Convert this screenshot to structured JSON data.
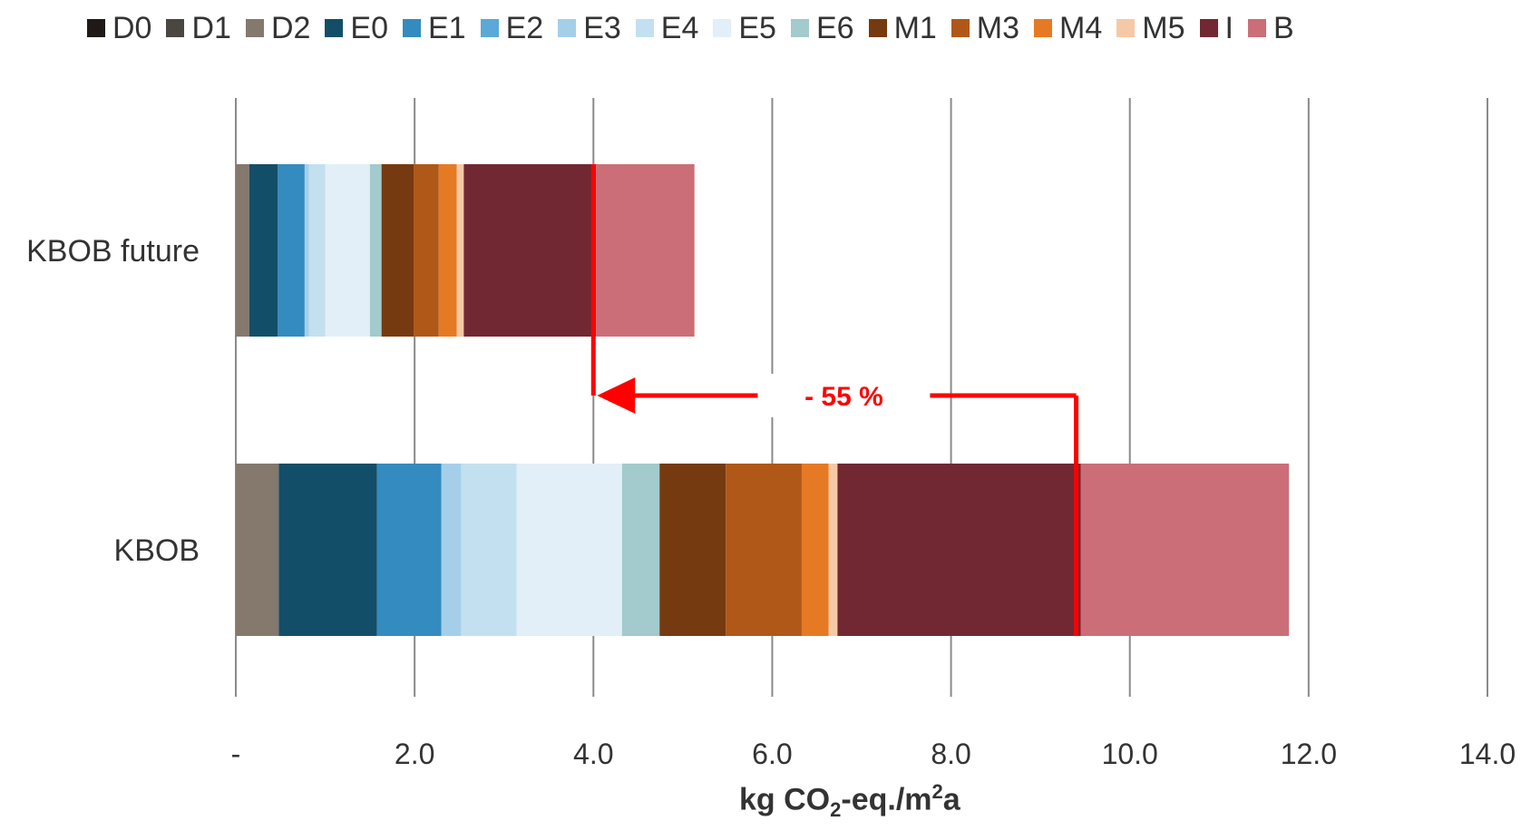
{
  "chart_data": {
    "type": "bar",
    "orientation": "horizontal",
    "stacked": true,
    "categories": [
      "KBOB future",
      "KBOB"
    ],
    "series": [
      {
        "name": "D0",
        "color": "#1f1a17",
        "values": [
          0.0,
          0.0
        ]
      },
      {
        "name": "D1",
        "color": "#4a4642",
        "values": [
          0.0,
          0.0
        ]
      },
      {
        "name": "D2",
        "color": "#85786d",
        "values": [
          0.15,
          0.48
        ]
      },
      {
        "name": "E0",
        "color": "#134e68",
        "values": [
          0.32,
          1.1
        ]
      },
      {
        "name": "E1",
        "color": "#348bbf",
        "values": [
          0.3,
          0.72
        ]
      },
      {
        "name": "E2",
        "color": "#5aa9d6",
        "values": [
          0.0,
          0.0
        ]
      },
      {
        "name": "E3",
        "color": "#a5cfe9",
        "values": [
          0.05,
          0.22
        ]
      },
      {
        "name": "E4",
        "color": "#c3e0f0",
        "values": [
          0.18,
          0.62
        ]
      },
      {
        "name": "E5",
        "color": "#e2eff8",
        "values": [
          0.5,
          1.18
        ]
      },
      {
        "name": "E6",
        "color": "#a3cacc",
        "values": [
          0.13,
          0.42
        ]
      },
      {
        "name": "M1",
        "color": "#763a10",
        "values": [
          0.36,
          0.74
        ]
      },
      {
        "name": "M3",
        "color": "#b05818",
        "values": [
          0.28,
          0.85
        ]
      },
      {
        "name": "M4",
        "color": "#e67a24",
        "values": [
          0.2,
          0.3
        ]
      },
      {
        "name": "M5",
        "color": "#f5c9a5",
        "values": [
          0.08,
          0.1
        ]
      },
      {
        "name": "I",
        "color": "#722832",
        "values": [
          1.48,
          2.72
        ]
      },
      {
        "name": "B",
        "color": "#cb6e77",
        "values": [
          1.1,
          2.33
        ]
      }
    ],
    "xlabel": {
      "prefix": "kg CO",
      "sub": "2",
      "middle": "-eq./m",
      "sup": "2",
      "suffix": "a"
    },
    "xlim": [
      0,
      14
    ],
    "xticks": [
      0,
      2,
      4,
      6,
      8,
      10,
      12,
      14
    ],
    "xtick_labels": [
      "-",
      "2.0",
      "4.0",
      "6.0",
      "8.0",
      "10.0",
      "12.0",
      "14.0"
    ],
    "grid": "vertical",
    "legend_position": "top",
    "annotation": {
      "text": "- 55 %",
      "from_value": 9.4,
      "to_value": 4.0,
      "color": "#ff0000"
    }
  }
}
